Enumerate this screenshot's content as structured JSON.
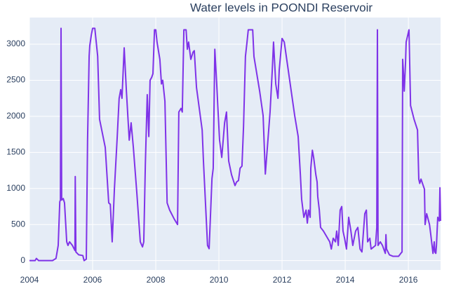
{
  "chart_data": {
    "type": "line",
    "title": "Water levels in POONDI Reservoir",
    "color": "#7f33e8",
    "grid": true,
    "xlim": [
      2004,
      2017.02
    ],
    "ylim": [
      -130,
      3370
    ],
    "xticks": [
      2004,
      2006,
      2008,
      2010,
      2012,
      2014,
      2016
    ],
    "yticks": [
      0,
      500,
      1000,
      1500,
      2000,
      2500,
      3000
    ],
    "x": [
      2004.0,
      2004.18,
      2004.22,
      2004.29,
      2004.73,
      2004.84,
      2004.91,
      2004.96,
      2004.98,
      2005.0,
      2005.02,
      2005.07,
      2005.11,
      2005.18,
      2005.22,
      2005.27,
      2005.36,
      2005.44,
      2005.45,
      2005.47,
      2005.56,
      2005.69,
      2005.73,
      2005.8,
      2005.84,
      2005.89,
      2005.91,
      2005.96,
      2006.0,
      2006.07,
      2006.16,
      2006.22,
      2006.4,
      2006.51,
      2006.56,
      2006.62,
      2006.69,
      2006.78,
      2006.84,
      2006.89,
      2006.93,
      2007.0,
      2007.07,
      2007.16,
      2007.22,
      2007.29,
      2007.4,
      2007.51,
      2007.58,
      2007.62,
      2007.67,
      2007.73,
      2007.78,
      2007.82,
      2007.87,
      2007.91,
      2007.96,
      2008.0,
      2008.04,
      2008.13,
      2008.18,
      2008.22,
      2008.29,
      2008.36,
      2008.44,
      2008.58,
      2008.69,
      2008.73,
      2008.8,
      2008.84,
      2008.89,
      2008.96,
      2009.0,
      2009.04,
      2009.11,
      2009.18,
      2009.22,
      2009.29,
      2009.47,
      2009.51,
      2009.64,
      2009.69,
      2009.78,
      2009.82,
      2009.87,
      2009.93,
      2010.02,
      2010.09,
      2010.18,
      2010.24,
      2010.31,
      2010.4,
      2010.51,
      2010.56,
      2010.62,
      2010.67,
      2010.73,
      2010.78,
      2010.84,
      2010.89,
      2010.93,
      2011.07,
      2011.11,
      2011.29,
      2011.4,
      2011.47,
      2011.62,
      2011.69,
      2011.73,
      2011.8,
      2011.87,
      2011.91,
      2012.0,
      2012.07,
      2012.18,
      2012.4,
      2012.51,
      2012.58,
      2012.62,
      2012.69,
      2012.76,
      2012.8,
      2012.84,
      2012.89,
      2012.91,
      2012.96,
      2013.0,
      2013.07,
      2013.11,
      2013.13,
      2013.18,
      2013.22,
      2013.31,
      2013.51,
      2013.56,
      2013.62,
      2013.69,
      2013.73,
      2013.78,
      2013.84,
      2013.89,
      2013.93,
      2013.98,
      2014.04,
      2014.11,
      2014.18,
      2014.24,
      2014.33,
      2014.4,
      2014.47,
      2014.53,
      2014.62,
      2014.67,
      2014.71,
      2014.78,
      2014.82,
      2014.96,
      2015.0,
      2015.02,
      2015.04,
      2015.11,
      2015.18,
      2015.27,
      2015.29,
      2015.31,
      2015.4,
      2015.51,
      2015.69,
      2015.76,
      2015.8,
      2015.82,
      2015.84,
      2015.87,
      2015.91,
      2015.93,
      2016.02,
      2016.07,
      2016.18,
      2016.29,
      2016.33,
      2016.36,
      2016.4,
      2016.51,
      2016.53,
      2016.58,
      2016.67,
      2016.71,
      2016.78,
      2016.82,
      2016.84,
      2016.87,
      2016.89,
      2016.93,
      2016.98,
      2017.0,
      2017.02
    ],
    "values": [
      0,
      0,
      30,
      0,
      0,
      30,
      210,
      815,
      840,
      3220,
      840,
      860,
      800,
      260,
      210,
      260,
      210,
      140,
      1165,
      120,
      80,
      70,
      0,
      20,
      1670,
      2835,
      2980,
      3130,
      3220,
      3220,
      2835,
      1960,
      1570,
      800,
      780,
      260,
      990,
      1720,
      2250,
      2370,
      2250,
      2950,
      2350,
      1670,
      1910,
      1570,
      940,
      260,
      190,
      260,
      1330,
      2300,
      1720,
      2500,
      2540,
      2590,
      3200,
      3200,
      3030,
      2790,
      2450,
      2500,
      2210,
      800,
      700,
      580,
      500,
      2060,
      2110,
      2060,
      3200,
      3200,
      2930,
      3030,
      2790,
      2890,
      2910,
      2400,
      1810,
      1380,
      210,
      165,
      1135,
      1280,
      2930,
      2450,
      1670,
      1430,
      1910,
      2060,
      1380,
      1190,
      1040,
      1090,
      1110,
      1280,
      1310,
      1860,
      2830,
      3030,
      3200,
      3200,
      2830,
      2350,
      2010,
      1200,
      2060,
      2640,
      3030,
      2450,
      2250,
      2640,
      3080,
      3030,
      2690,
      2010,
      1720,
      1190,
      850,
      600,
      700,
      520,
      700,
      600,
      1280,
      1530,
      1430,
      1190,
      1090,
      890,
      700,
      460,
      410,
      260,
      160,
      310,
      260,
      410,
      210,
      700,
      750,
      410,
      310,
      160,
      600,
      410,
      210,
      410,
      460,
      160,
      120,
      650,
      700,
      260,
      310,
      160,
      210,
      460,
      3200,
      210,
      260,
      210,
      100,
      360,
      160,
      80,
      60,
      60,
      100,
      120,
      2790,
      2640,
      2350,
      2740,
      3030,
      3200,
      2150,
      1960,
      1810,
      1130,
      1070,
      1130,
      990,
      500,
      650,
      500,
      360,
      100,
      260,
      120,
      100,
      210,
      600,
      550,
      1010,
      550
    ]
  }
}
